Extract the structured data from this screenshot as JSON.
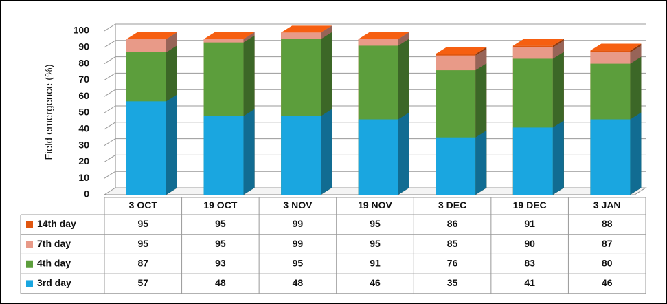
{
  "chart_data": {
    "type": "bar",
    "y_label": "Field emergence (%)",
    "categories": [
      "3 OCT",
      "19 OCT",
      "3 NOV",
      "19 NOV",
      "3 DEC",
      "19 DEC",
      "3 JAN"
    ],
    "series": [
      {
        "name": "14th day",
        "color": "#e0560f",
        "values": [
          95,
          95,
          99,
          95,
          86,
          91,
          88
        ]
      },
      {
        "name": "7th day",
        "color": "#e89a88",
        "values": [
          95,
          95,
          99,
          95,
          85,
          90,
          87
        ]
      },
      {
        "name": "4th day",
        "color": "#5c9e3c",
        "values": [
          87,
          93,
          95,
          91,
          76,
          83,
          80
        ]
      },
      {
        "name": "3rd day",
        "color": "#1aa6e0",
        "values": [
          57,
          48,
          48,
          46,
          35,
          41,
          46
        ]
      }
    ],
    "ylim": [
      0,
      100
    ],
    "yticks": [
      0,
      10,
      20,
      30,
      40,
      50,
      60,
      70,
      80,
      90,
      100
    ],
    "grid": true
  }
}
